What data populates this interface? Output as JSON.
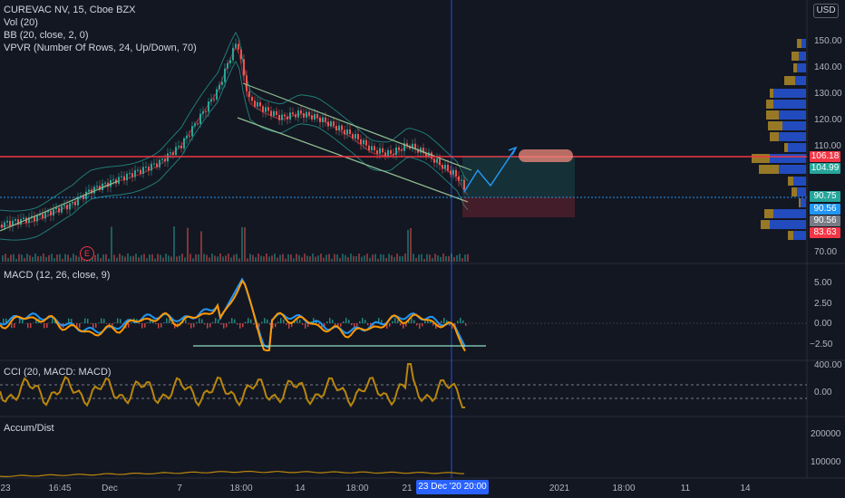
{
  "legend": {
    "symbol": "CUREVAC NV, 15, Cboe BZX",
    "vol": "Vol (20)",
    "bb": "BB (20, close, 2, 0)",
    "vpvr": "VPVR (Number Of Rows, 24, Up/Down, 70)"
  },
  "panes": {
    "macd_title": "MACD (12, 26, close, 9)",
    "cci_title": "CCI (20, MACD: MACD)",
    "accum_title": "Accum/Dist"
  },
  "currency_button": "USD",
  "earnings_marker": "E",
  "price_axis": {
    "ticks": [
      "150.00",
      "140.00",
      "130.00",
      "120.00",
      "110.00",
      "70.00"
    ],
    "tags": {
      "red_line": "106.18",
      "last_price": "104.99",
      "green_level": "90.75",
      "blue_level": "90.56",
      "gray_level": "90.56",
      "stop_level": "83.63"
    }
  },
  "macd_axis": [
    "5.00",
    "2.50",
    "0.00",
    "−2.50"
  ],
  "cci_axis": [
    "400.00",
    "0.00"
  ],
  "accum_axis": [
    "200000",
    "100000"
  ],
  "time_axis": [
    "23",
    "16:45",
    "Dec",
    "7",
    "18:00",
    "14",
    "18:00",
    "21",
    "2021",
    "18:00",
    "11",
    "14"
  ],
  "cursor_time": "23 Dec '20  20:00",
  "colors": {
    "background": "#131722",
    "red_line": "#f23645",
    "macd_line": "#2196f3",
    "signal_line": "#ff9800",
    "cci_line": "#b8860b",
    "bb_band": "#26a69a",
    "vp_up": "#2962ff",
    "vp_down": "#c49a27"
  }
}
